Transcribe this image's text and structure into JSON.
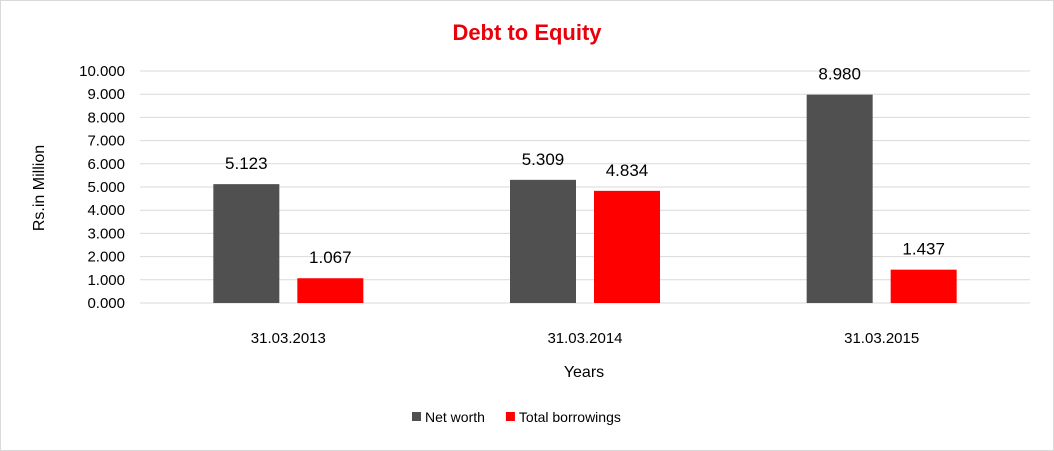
{
  "chart_data": {
    "type": "bar",
    "title": "Debt to Equity",
    "xlabel": "Years",
    "ylabel": "Rs.in Million",
    "categories": [
      "31.03.2013",
      "31.03.2014",
      "31.03.2015"
    ],
    "series": [
      {
        "name": "Net worth",
        "color": "#505050",
        "values": [
          5.123,
          5.309,
          8.98
        ],
        "labels": [
          "5.123",
          "5.309",
          "8.980"
        ]
      },
      {
        "name": "Total borrowings",
        "color": "#ff0000",
        "values": [
          1.067,
          4.834,
          1.437
        ],
        "labels": [
          "1.067",
          "4.834",
          "1.437"
        ]
      }
    ],
    "ylim": [
      0,
      10
    ],
    "yticks": [
      "0.000",
      "1.000",
      "2.000",
      "3.000",
      "4.000",
      "5.000",
      "6.000",
      "7.000",
      "8.000",
      "9.000",
      "10.000"
    ],
    "grid": true,
    "legend_position": "bottom",
    "colors": {
      "title": "#e8000b",
      "gridline": "#d9d9d9"
    }
  }
}
